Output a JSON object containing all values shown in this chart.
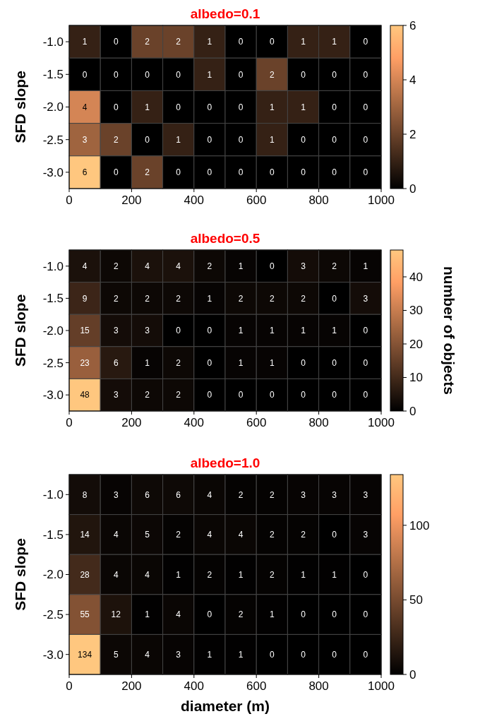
{
  "chart_data": [
    {
      "type": "heatmap",
      "title": "albedo=0.1",
      "ylabel": "SFD slope",
      "x": [
        50,
        150,
        250,
        350,
        450,
        550,
        650,
        750,
        850,
        950
      ],
      "xlim": [
        0,
        1000
      ],
      "xticks": [
        0,
        200,
        400,
        600,
        800,
        1000
      ],
      "y_categories": [
        "-1.0",
        "-1.5",
        "-2.0",
        "-2.5",
        "-3.0"
      ],
      "cells": [
        [
          1,
          0,
          2,
          2,
          1,
          0,
          0,
          1,
          1,
          0
        ],
        [
          0,
          0,
          0,
          0,
          1,
          0,
          2,
          0,
          0,
          0
        ],
        [
          4,
          0,
          1,
          0,
          0,
          0,
          1,
          1,
          0,
          0
        ],
        [
          3,
          2,
          0,
          1,
          0,
          0,
          1,
          0,
          0,
          0
        ],
        [
          6,
          0,
          2,
          0,
          0,
          0,
          0,
          0,
          0,
          0
        ]
      ],
      "clim": [
        0,
        6
      ],
      "cticks": [
        0,
        2,
        4,
        6
      ],
      "data_labels": true
    },
    {
      "type": "heatmap",
      "title": "albedo=0.5",
      "ylabel": "SFD slope",
      "clabel": "number of objects",
      "x": [
        50,
        150,
        250,
        350,
        450,
        550,
        650,
        750,
        850,
        950
      ],
      "xlim": [
        0,
        1000
      ],
      "xticks": [
        0,
        200,
        400,
        600,
        800,
        1000
      ],
      "y_categories": [
        "-1.0",
        "-1.5",
        "-2.0",
        "-2.5",
        "-3.0"
      ],
      "cells": [
        [
          4,
          2,
          4,
          4,
          2,
          1,
          0,
          3,
          2,
          1
        ],
        [
          9,
          2,
          2,
          2,
          1,
          2,
          2,
          2,
          0,
          3
        ],
        [
          15,
          3,
          3,
          0,
          0,
          1,
          1,
          1,
          1,
          0
        ],
        [
          23,
          6,
          1,
          2,
          0,
          1,
          1,
          0,
          0,
          0
        ],
        [
          48,
          3,
          2,
          2,
          0,
          0,
          0,
          0,
          0,
          0
        ]
      ],
      "clim": [
        0,
        48
      ],
      "cticks": [
        0,
        10,
        20,
        30,
        40
      ],
      "data_labels": true
    },
    {
      "type": "heatmap",
      "title": "albedo=1.0",
      "xlabel": "diameter (m)",
      "ylabel": "SFD slope",
      "x": [
        50,
        150,
        250,
        350,
        450,
        550,
        650,
        750,
        850,
        950
      ],
      "xlim": [
        0,
        1000
      ],
      "xticks": [
        0,
        200,
        400,
        600,
        800,
        1000
      ],
      "y_categories": [
        "-1.0",
        "-1.5",
        "-2.0",
        "-2.5",
        "-3.0"
      ],
      "cells": [
        [
          8,
          3,
          6,
          6,
          4,
          2,
          2,
          3,
          3,
          3
        ],
        [
          14,
          4,
          5,
          2,
          4,
          4,
          2,
          2,
          0,
          3
        ],
        [
          28,
          4,
          4,
          1,
          2,
          1,
          2,
          1,
          1,
          0
        ],
        [
          55,
          12,
          1,
          4,
          0,
          2,
          1,
          0,
          0,
          0
        ],
        [
          134,
          5,
          4,
          3,
          1,
          1,
          0,
          0,
          0,
          0
        ]
      ],
      "clim": [
        0,
        134
      ],
      "cticks": [
        0,
        50,
        100
      ],
      "data_labels": true
    }
  ]
}
